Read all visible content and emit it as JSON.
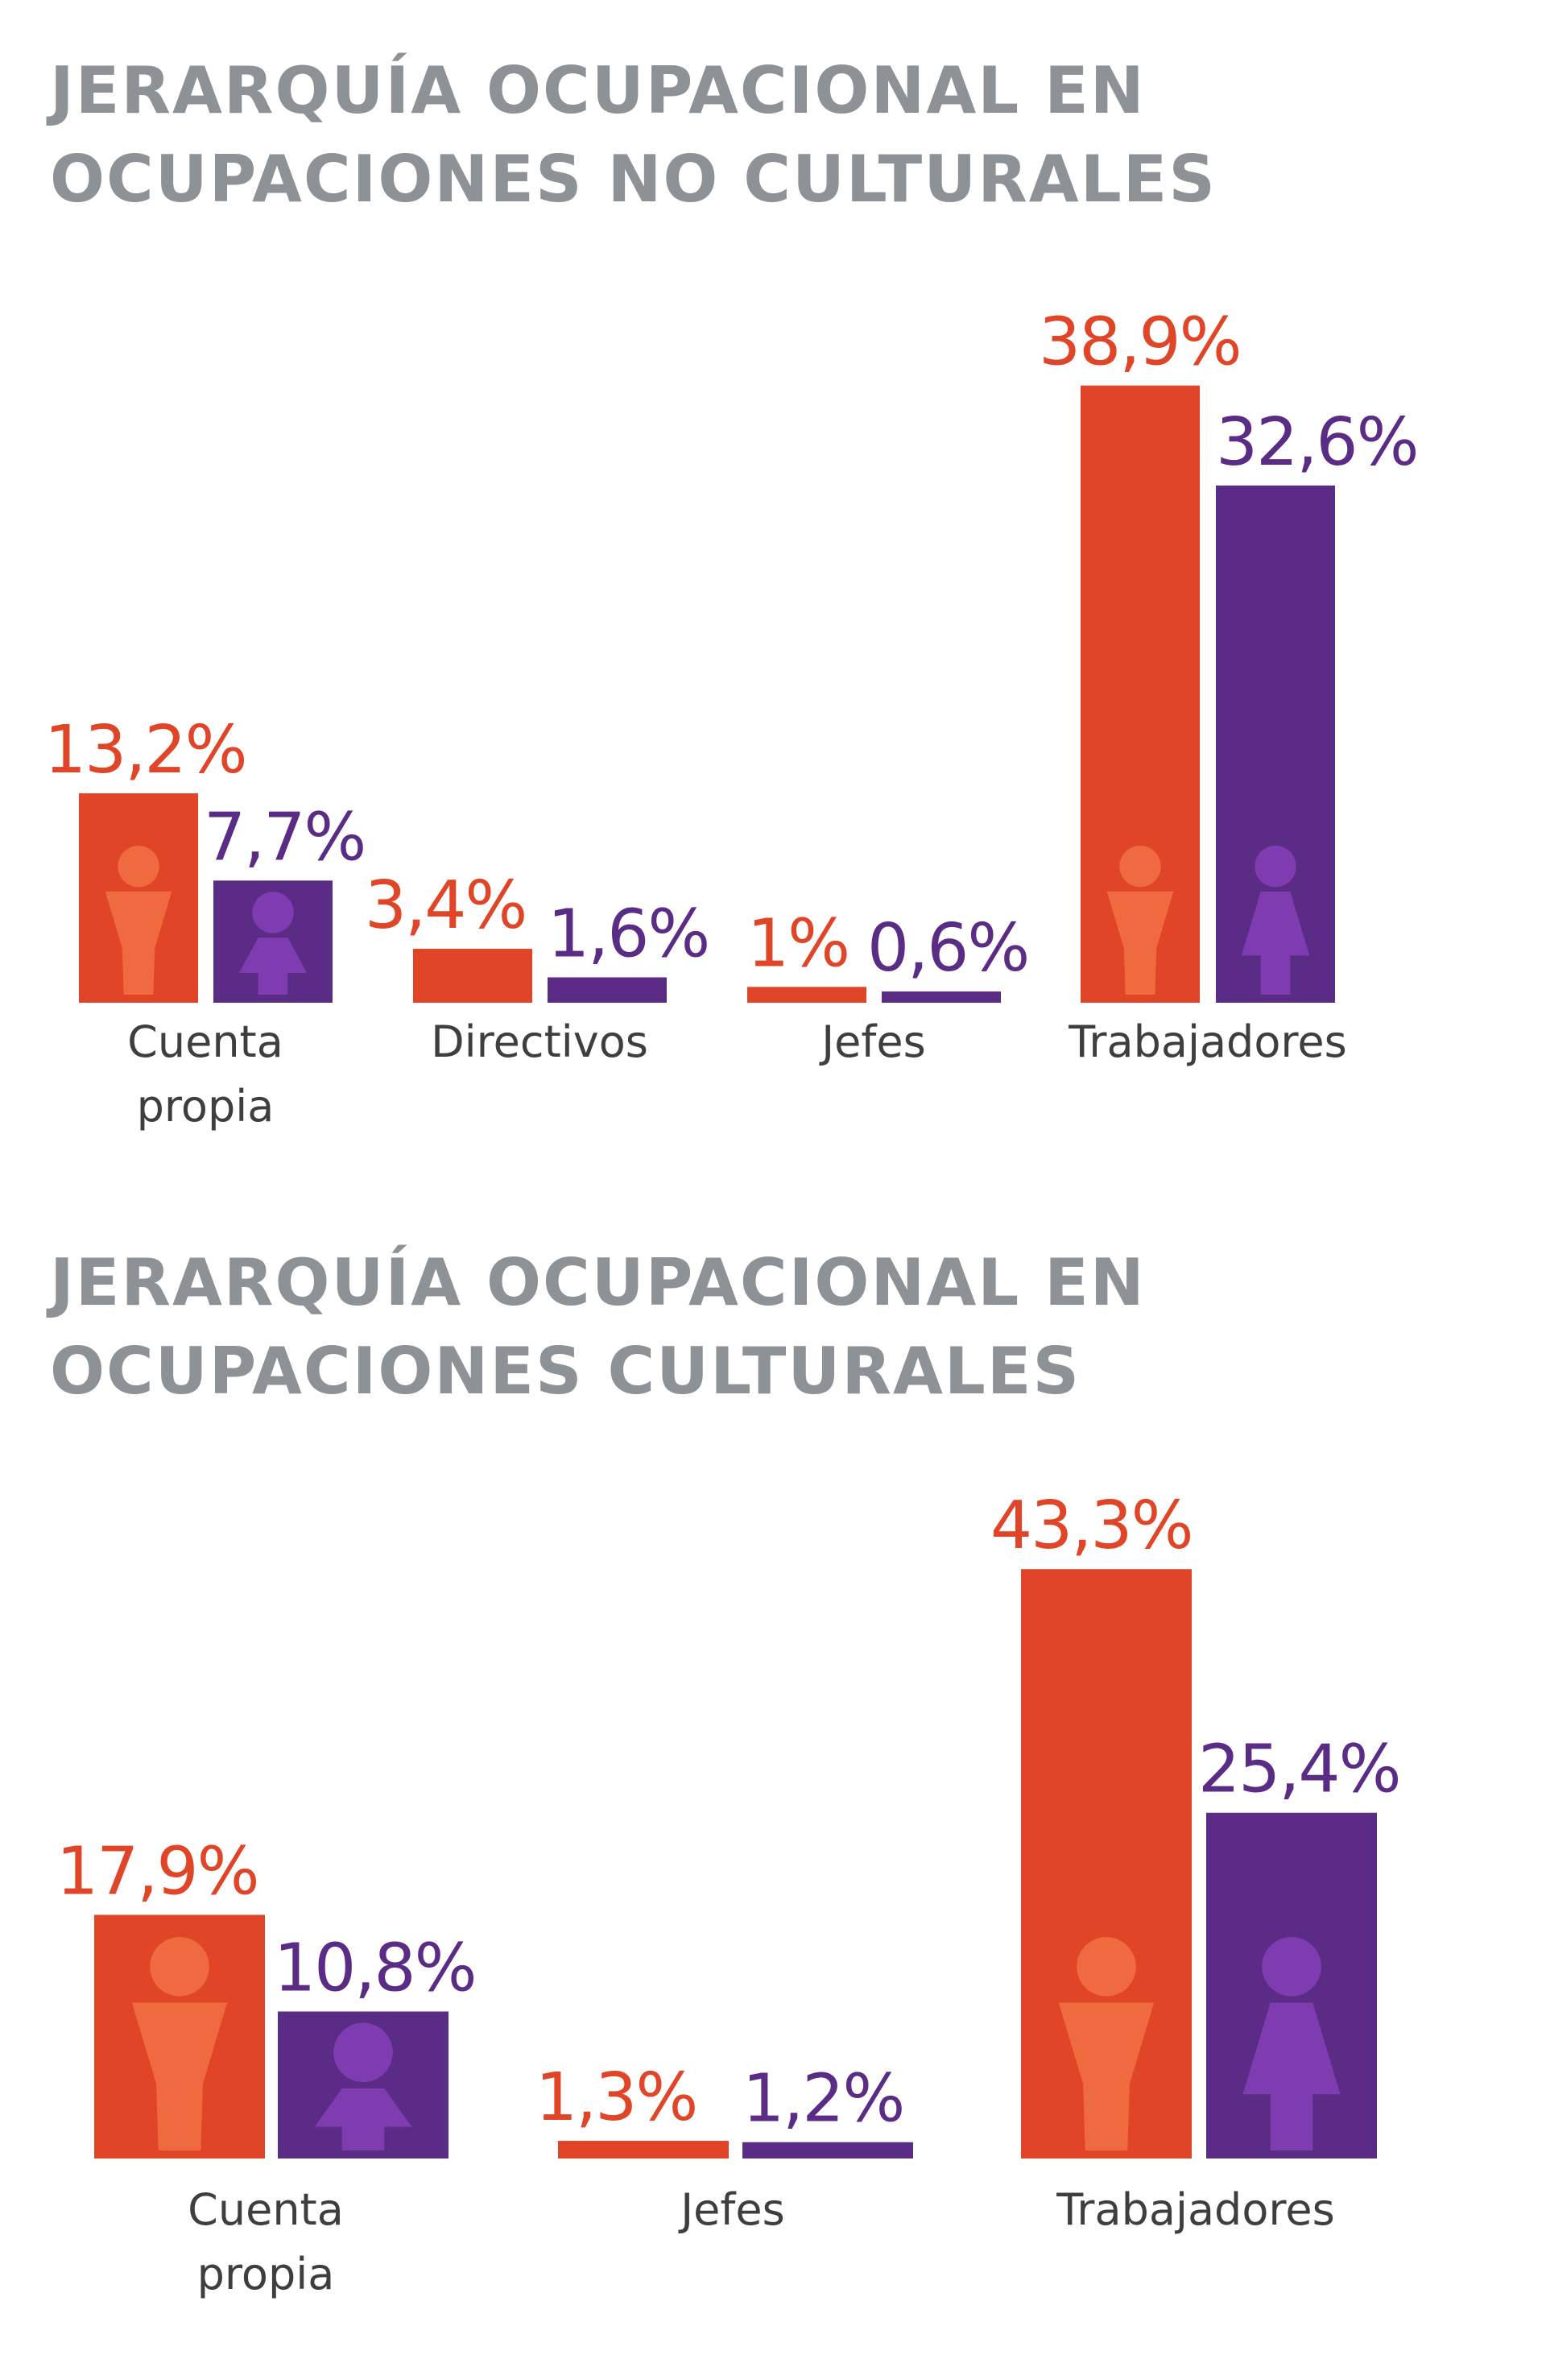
{
  "colors": {
    "women": "#e04527",
    "men": "#5b2c86",
    "women_icon": "#f06a3f",
    "men_icon": "#7e3cb0",
    "title": "#8d9296",
    "label": "#3e3e3e"
  },
  "chart_data": [
    {
      "type": "bar",
      "title_lines": [
        "JERARQUÍA OCUPACIONAL EN",
        "OCUPACIONES NO CULTURALES"
      ],
      "categories": [
        [
          "Cuenta",
          "propia"
        ],
        [
          "Directivos"
        ],
        [
          "Jefes"
        ],
        [
          "Trabajadores"
        ]
      ],
      "series": [
        {
          "values": [
            13.2,
            3.4,
            1.0,
            38.9
          ],
          "labels": [
            "13,2%",
            "3,4%",
            "1%",
            "38,9%"
          ]
        },
        {
          "values": [
            7.7,
            1.6,
            0.6,
            32.6
          ],
          "labels": [
            "7,7%",
            "1,6%",
            "0,6%",
            "32,6%"
          ]
        }
      ],
      "icons_on": [
        "Cuenta propia",
        "Trabajadores"
      ]
    },
    {
      "type": "bar",
      "title_lines": [
        "JERARQUÍA OCUPACIONAL EN",
        "OCUPACIONES CULTURALES"
      ],
      "categories": [
        [
          "Cuenta",
          "propia"
        ],
        [
          "Jefes"
        ],
        [
          "Trabajadores"
        ]
      ],
      "series": [
        {
          "values": [
            17.9,
            1.3,
            43.3
          ],
          "labels": [
            "17,9%",
            "1,3%",
            "43,3%"
          ]
        },
        {
          "values": [
            10.8,
            1.2,
            25.4
          ],
          "labels": [
            "10,8%",
            "1,2%",
            "25,4%"
          ]
        }
      ],
      "icons_on": [
        "Cuenta propia",
        "Trabajadores"
      ]
    }
  ]
}
